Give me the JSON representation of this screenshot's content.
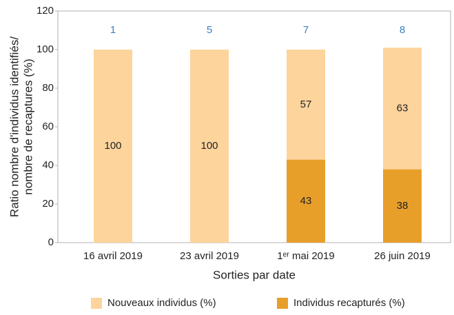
{
  "chart_data": {
    "type": "stacked_bar",
    "categories": [
      "16 avril 2019",
      "23 avril 2019",
      "1ᵉʳ mai 2019",
      "26 juin 2019"
    ],
    "series": [
      {
        "name": "Individus recapturés (%)",
        "color": "#e89f2a",
        "values": [
          0,
          0,
          43,
          38
        ]
      },
      {
        "name": "Nouveaux individus (%)",
        "color": "#fdd49c",
        "values": [
          100,
          100,
          57,
          63
        ]
      }
    ],
    "top_labels": [
      1,
      5,
      7,
      8
    ],
    "top_label_color": "#3a7fc1",
    "x_label": "Sorties par date",
    "y_label": [
      "Ratio nombre d'individus identifiés/",
      "nombre de recaptures (%)"
    ],
    "ylim": [
      0,
      120
    ],
    "yticks": [
      0,
      20,
      40,
      60,
      80,
      100,
      120
    ],
    "grid": false,
    "legend_order": [
      1,
      0
    ]
  }
}
